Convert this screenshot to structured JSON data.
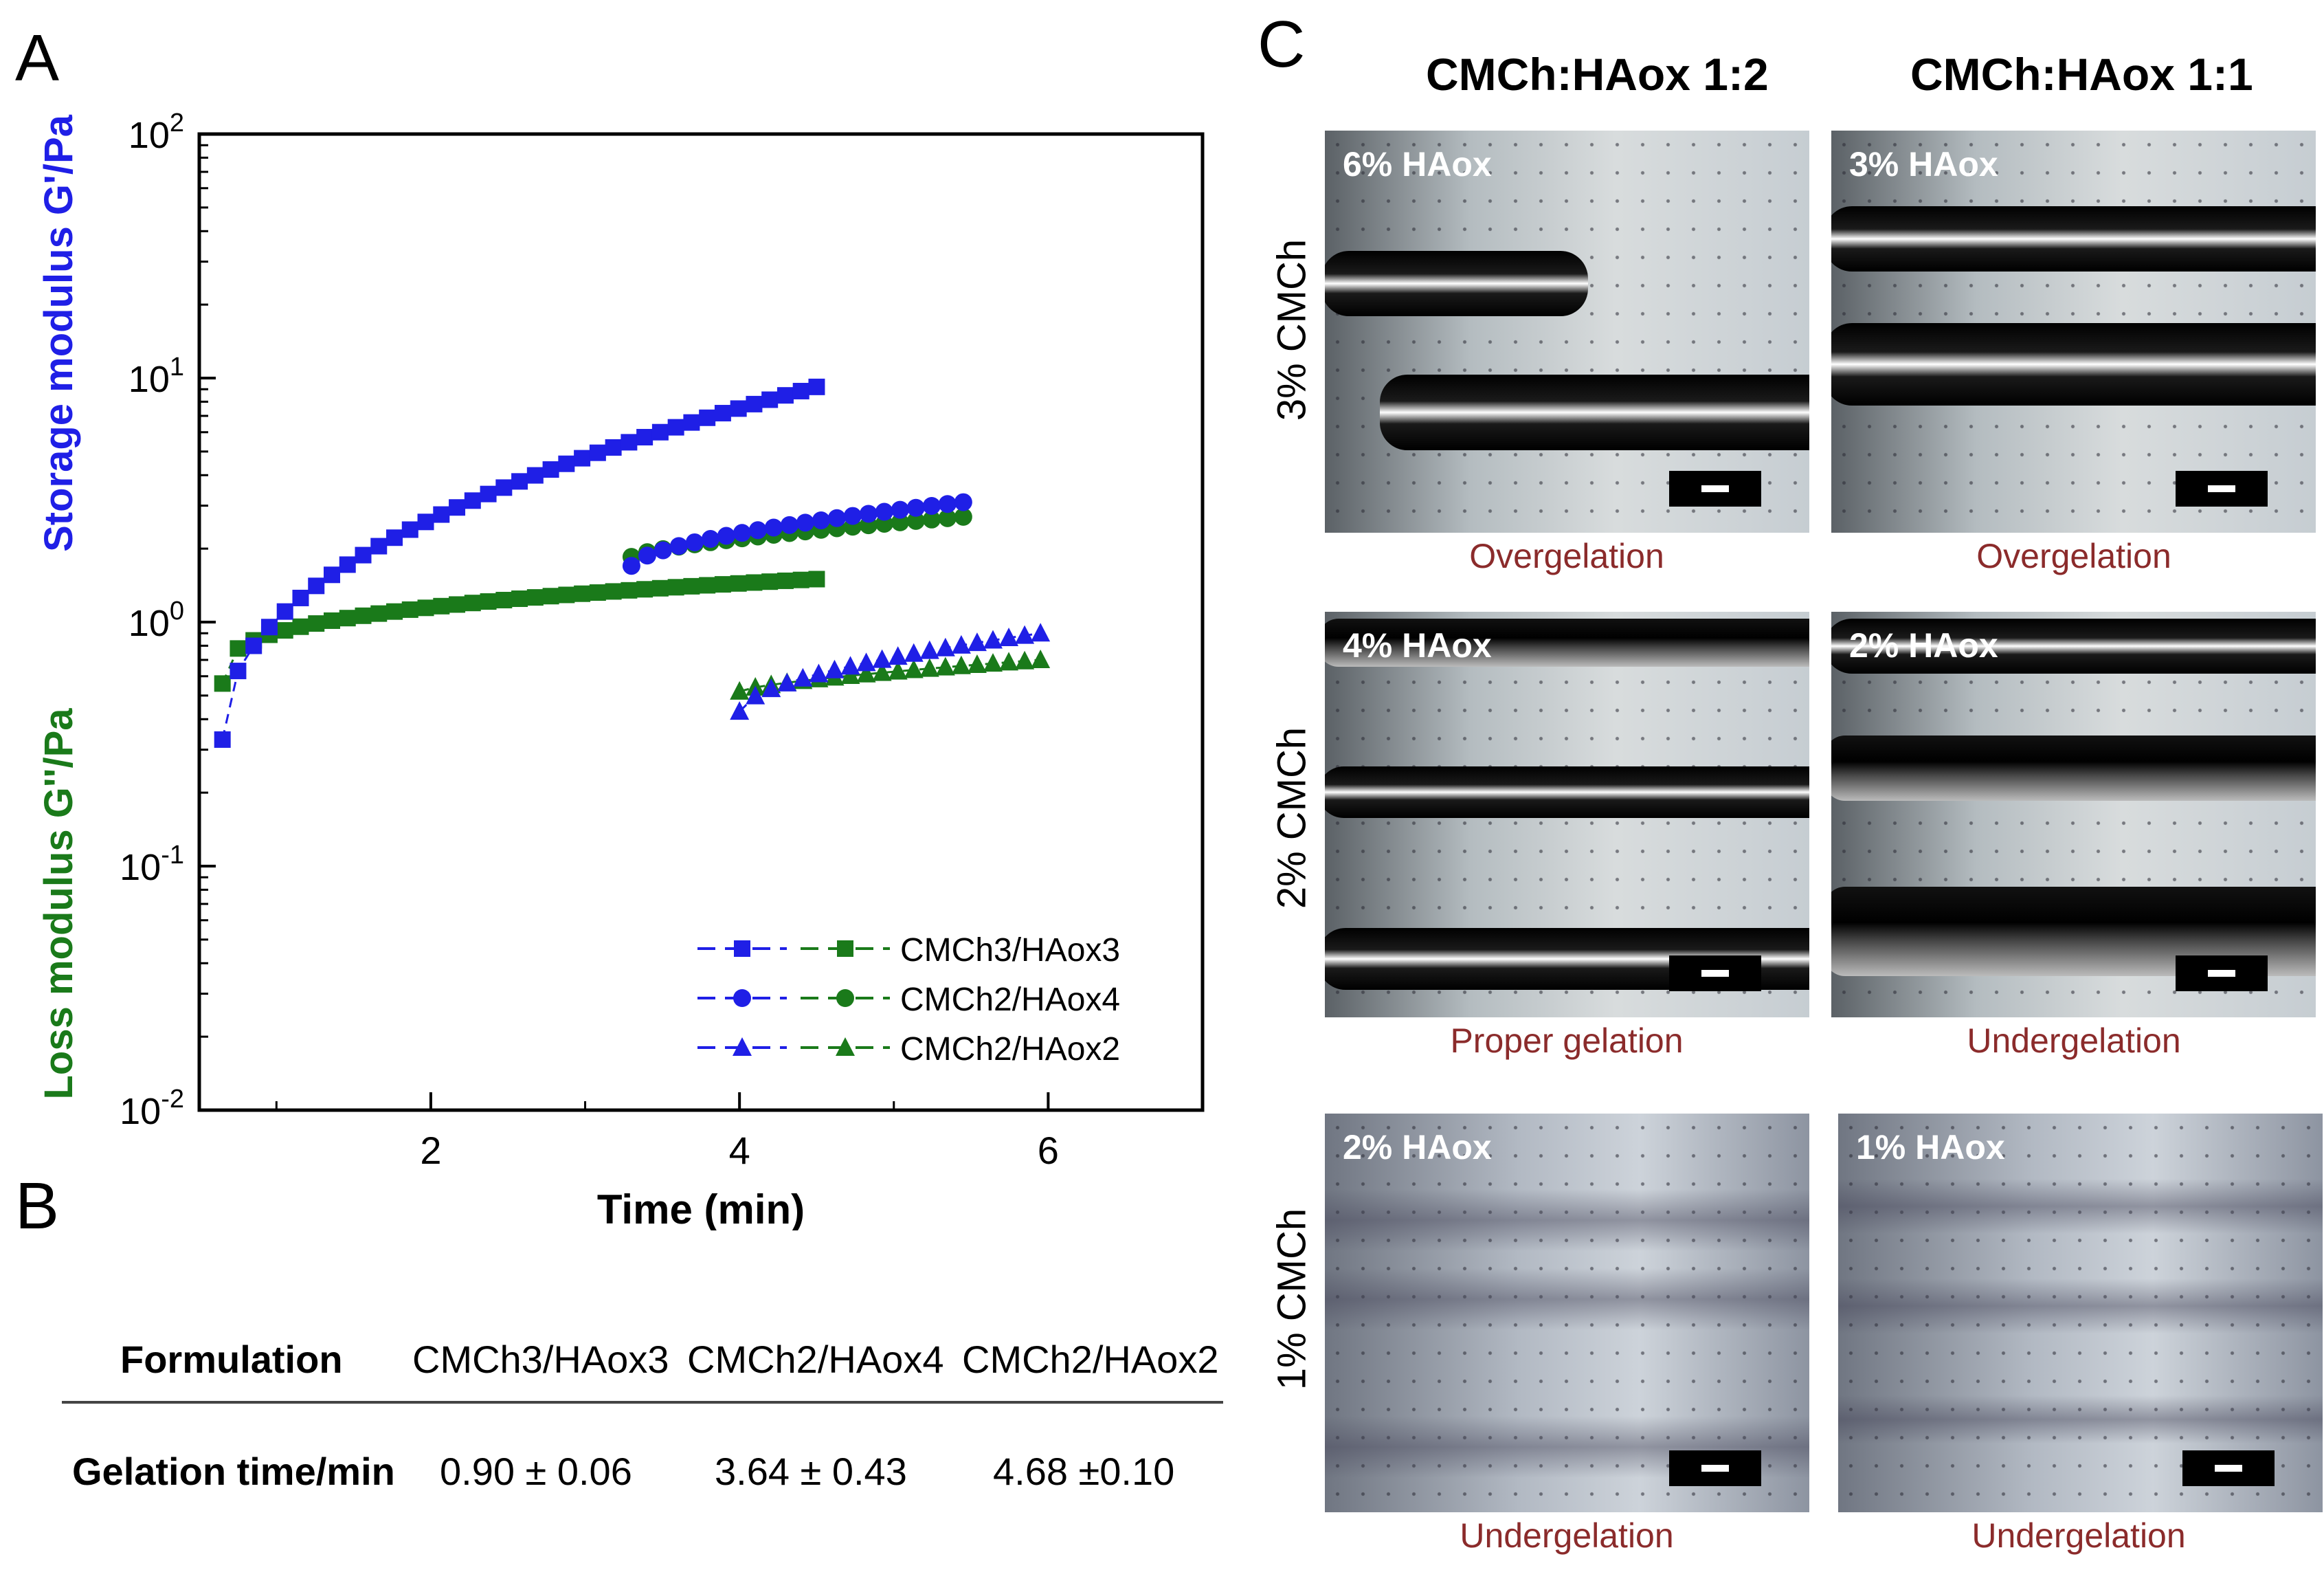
{
  "panels": {
    "a": "A",
    "b": "B",
    "c": "C"
  },
  "chart_data": {
    "type": "scatter",
    "xlabel": "Time (min)",
    "ylabel_storage": "Storage modulus G'/Pa",
    "ylabel_loss": "Loss modulus G''/Pa",
    "xlim": [
      0.5,
      7
    ],
    "ylim": [
      0.01,
      100
    ],
    "yscale": "log",
    "x_ticks": [
      2,
      4,
      6
    ],
    "y_tick_labels": [
      {
        "value": 100,
        "base": "10",
        "exp": "2"
      },
      {
        "value": 10,
        "base": "10",
        "exp": "1"
      },
      {
        "value": 1,
        "base": "10",
        "exp": "0"
      },
      {
        "value": 0.1,
        "base": "10",
        "exp": "-1"
      },
      {
        "value": 0.01,
        "base": "10",
        "exp": "-2"
      }
    ],
    "legend_position": "bottom-right",
    "colors": {
      "storage": "#1f1fe6",
      "loss": "#1a7a1a"
    },
    "series": [
      {
        "name": "CMCh3/HAox3",
        "marker": "square",
        "storage": {
          "t_start": 0.65,
          "t_end": 4.5,
          "v_start": 0.33,
          "v_end": 9.2,
          "count": 39,
          "shape": "pow",
          "k": 0.45
        },
        "loss": {
          "t_start": 0.65,
          "t_end": 4.5,
          "v_start": 0.56,
          "v_end": 1.5,
          "count": 39,
          "shape": "pow",
          "k": 0.3
        }
      },
      {
        "name": "CMCh2/HAox4",
        "marker": "circle",
        "storage": {
          "t_start": 3.3,
          "t_end": 5.45,
          "v_start": 1.7,
          "v_end": 3.1,
          "count": 22,
          "shape": "pow",
          "k": 0.6
        },
        "loss": {
          "t_start": 3.3,
          "t_end": 5.45,
          "v_start": 1.85,
          "v_end": 2.7,
          "count": 22,
          "shape": "pow",
          "k": 0.7
        }
      },
      {
        "name": "CMCh2/HAox2",
        "marker": "triangle",
        "storage": {
          "t_start": 4.0,
          "t_end": 5.95,
          "v_start": 0.43,
          "v_end": 0.9,
          "count": 20,
          "shape": "pow",
          "k": 0.55
        },
        "loss": {
          "t_start": 4.0,
          "t_end": 5.95,
          "v_start": 0.52,
          "v_end": 0.7,
          "count": 20,
          "shape": "pow",
          "k": 0.7
        }
      }
    ]
  },
  "table": {
    "headers": [
      "Formulation",
      "CMCh3/HAox3",
      "CMCh2/HAox4",
      "CMCh2/HAox2"
    ],
    "row_label": "Gelation time/min",
    "values": [
      "0.90 ± 0.06",
      "3.64 ± 0.43",
      "4.68 ±0.10"
    ]
  },
  "micrographs": {
    "col_titles": [
      "CMCh:HAox 1:2",
      "CMCh:HAox 1:1"
    ],
    "row_labels": [
      "3% CMCh",
      "2% CMCh",
      "1% CMCh"
    ],
    "cells": [
      {
        "conc": "6% HAox",
        "caption": "Overgelation"
      },
      {
        "conc": "3% HAox",
        "caption": "Overgelation"
      },
      {
        "conc": "4% HAox",
        "caption": "Proper gelation"
      },
      {
        "conc": "2% HAox",
        "caption": "Undergelation"
      },
      {
        "conc": "2% HAox",
        "caption": "Undergelation"
      },
      {
        "conc": "1% HAox",
        "caption": "Undergelation"
      }
    ]
  }
}
